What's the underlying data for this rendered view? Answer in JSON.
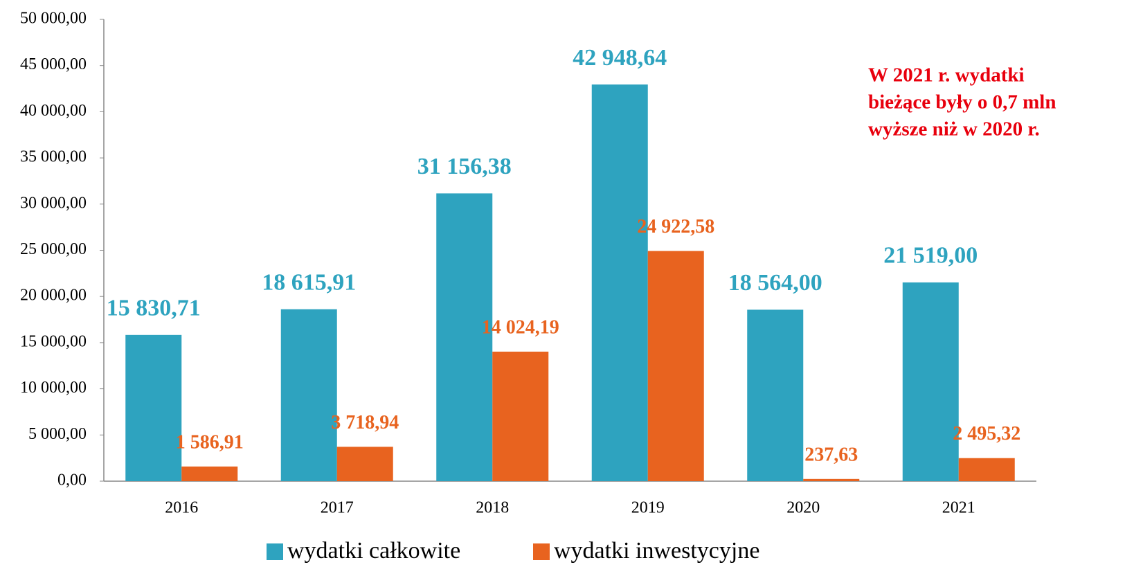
{
  "chart_data": {
    "type": "bar",
    "categories": [
      "2016",
      "2017",
      "2018",
      "2019",
      "2020",
      "2021"
    ],
    "series": [
      {
        "name": "wydatki całkowite",
        "color": "#2ea3bf",
        "values": [
          15830.71,
          18615.91,
          31156.38,
          42948.64,
          18564.0,
          21519.0
        ],
        "value_labels": [
          "15 830,71",
          "18 615,91",
          "31 156,38",
          "42 948,64",
          "18 564,00",
          "21 519,00"
        ]
      },
      {
        "name": "wydatki inwestycyjne",
        "color": "#e8631f",
        "values": [
          1586.91,
          3718.94,
          14024.19,
          24922.58,
          237.63,
          2495.32
        ],
        "value_labels": [
          "1 586,91",
          "3 718,94",
          "14 024,19",
          "24 922,58",
          "237,63",
          "2 495,32"
        ]
      }
    ],
    "ylim": [
      0,
      50000
    ],
    "yticks": [
      {
        "value": 0,
        "label": "0,00"
      },
      {
        "value": 5000,
        "label": "5 000,00"
      },
      {
        "value": 10000,
        "label": "10 000,00"
      },
      {
        "value": 15000,
        "label": "15 000,00"
      },
      {
        "value": 20000,
        "label": "20 000,00"
      },
      {
        "value": 25000,
        "label": "25 000,00"
      },
      {
        "value": 30000,
        "label": "30 000,00"
      },
      {
        "value": 35000,
        "label": "35 000,00"
      },
      {
        "value": 40000,
        "label": "40 000,00"
      },
      {
        "value": 45000,
        "label": "45 000,00"
      },
      {
        "value": 50000,
        "label": "50 000,00"
      }
    ],
    "annotation": [
      "W 2021 r. wydatki",
      "bieżące były o 0,7 mln",
      "wyższe niż w 2020 r."
    ],
    "annotation_color": "#e8000d",
    "grid": false,
    "legend": "bottom"
  }
}
